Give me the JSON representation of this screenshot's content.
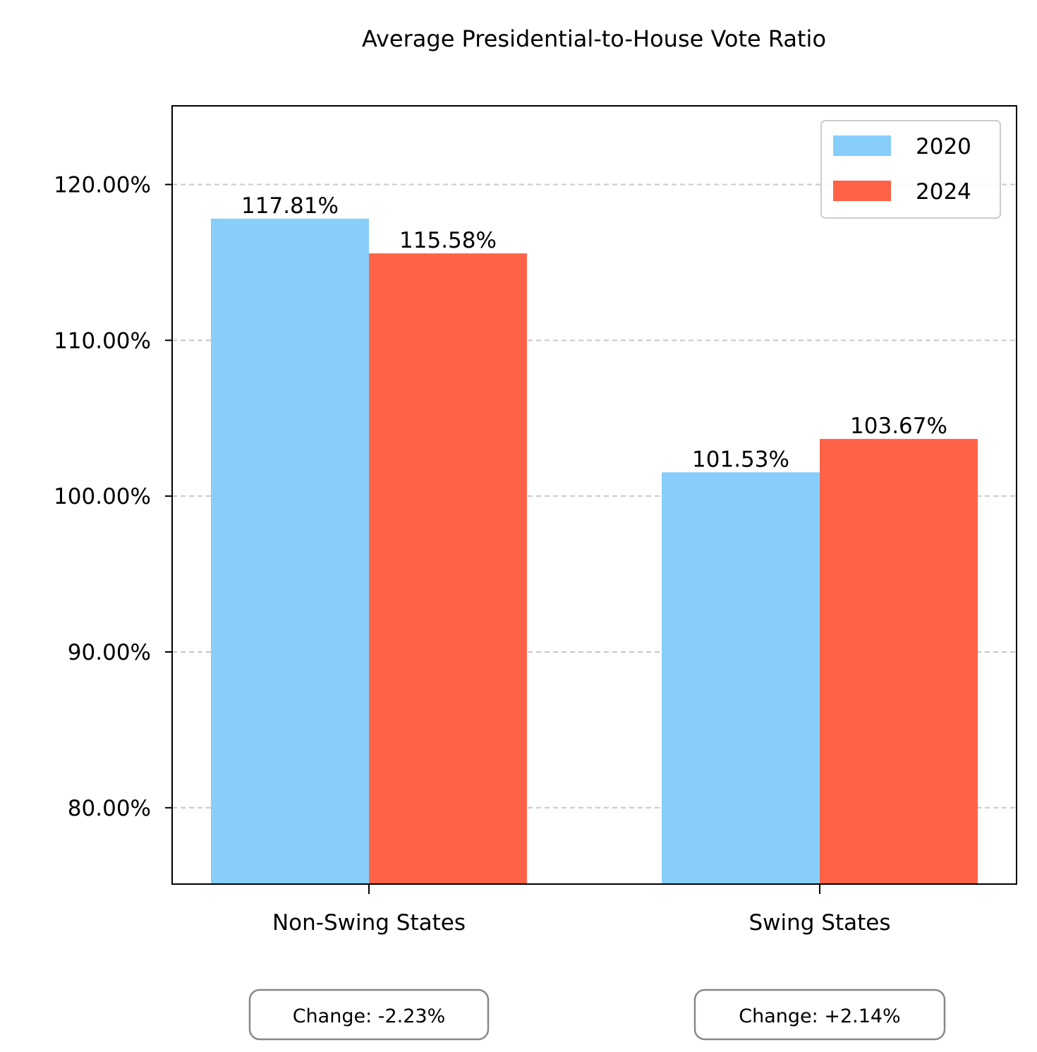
{
  "chart_data": {
    "type": "bar",
    "title": "Average Presidential-to-House Vote Ratio",
    "xlabel": "",
    "ylabel": "",
    "categories": [
      "Non-Swing States",
      "Swing States"
    ],
    "series": [
      {
        "name": "2020",
        "values": [
          117.81,
          101.53
        ],
        "color": "#87CEFA"
      },
      {
        "name": "2024",
        "values": [
          115.58,
          103.67
        ],
        "color": "#FF6347"
      }
    ],
    "data_labels": [
      [
        "117.81%",
        "101.53%"
      ],
      [
        "115.58%",
        "103.67%"
      ]
    ],
    "ylim": [
      75.1,
      125.05
    ],
    "yticks": [
      80,
      90,
      100,
      110,
      120
    ],
    "ytick_labels": [
      "80.00%",
      "90.00%",
      "100.00%",
      "110.00%",
      "120.00%"
    ],
    "grid": "y-axis dashed",
    "legend_position": "top-right",
    "annotations": [
      "Change: -2.23%",
      "Change: +2.14%"
    ]
  }
}
